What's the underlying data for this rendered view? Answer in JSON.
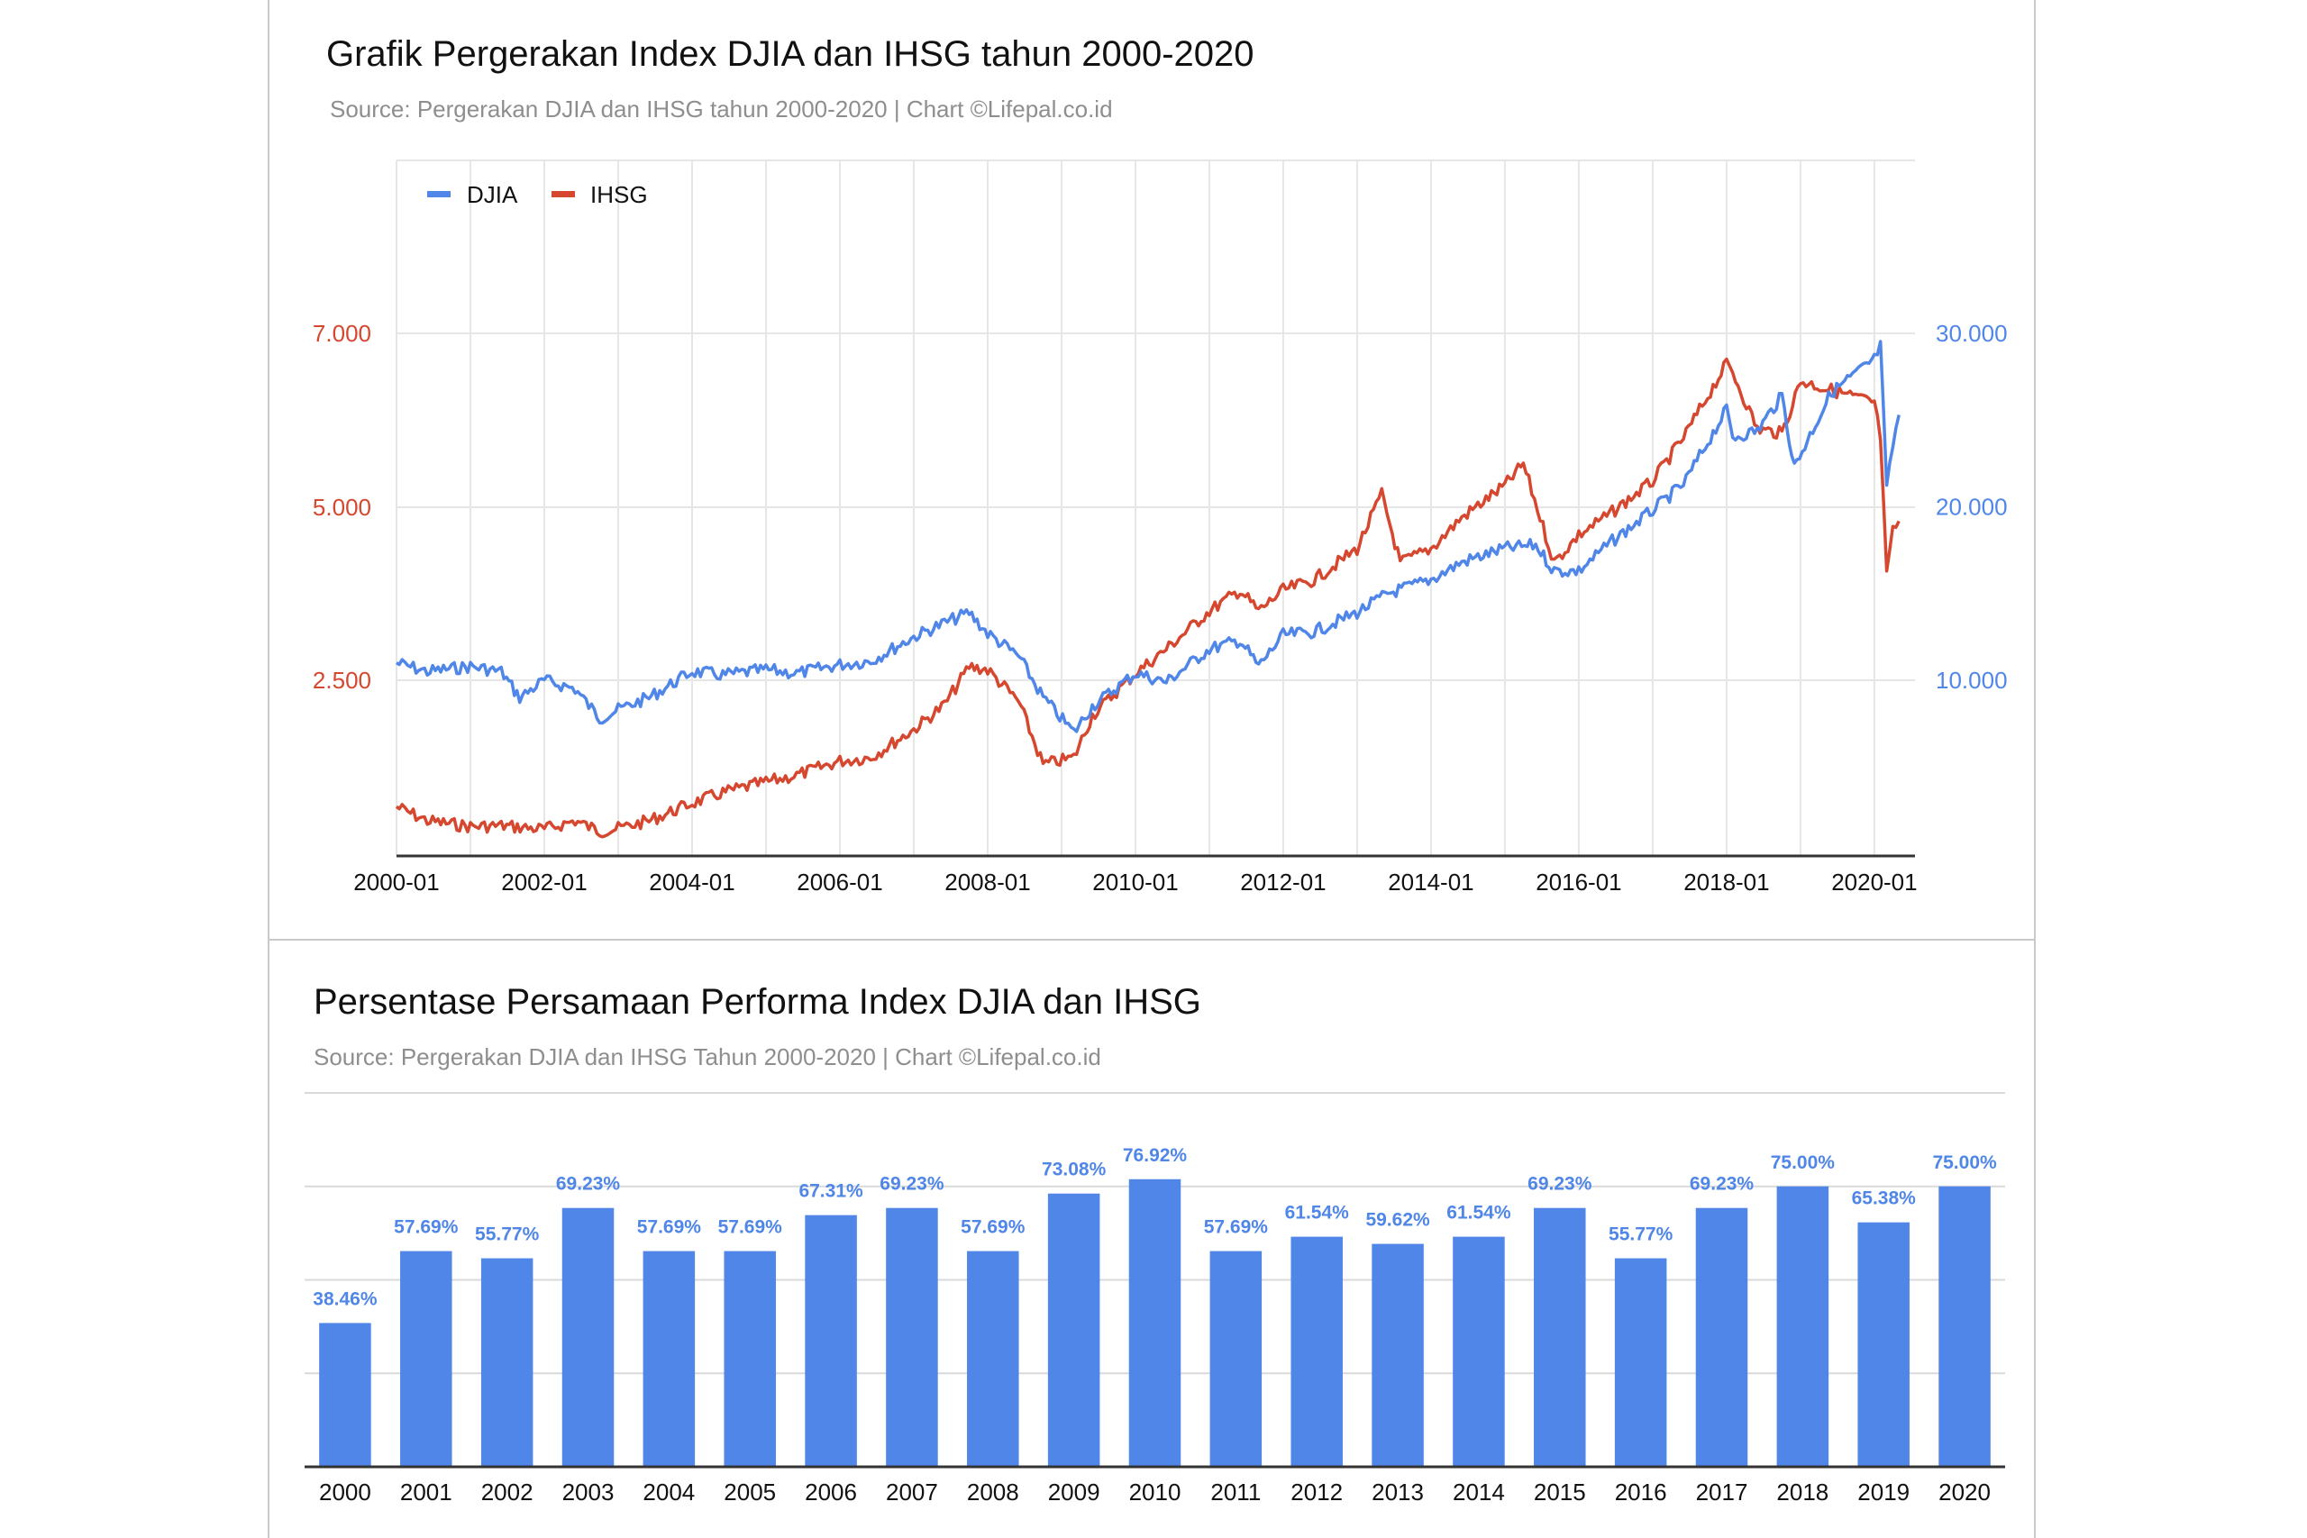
{
  "charts": [
    {
      "title": "Grafik Pergerakan Index DJIA dan IHSG tahun 2000-2020",
      "subtitle": "Source: Pergerakan DJIA dan IHSG tahun 2000-2020 | Chart ©Lifepal.co.id"
    },
    {
      "title": "Persentase Persamaan Performa Index DJIA dan IHSG",
      "subtitle": "Source: Pergerakan DJIA dan IHSG Tahun 2000-2020 | Chart ©Lifepal.co.id"
    }
  ],
  "colors": {
    "djia": "#4f86e8",
    "ihsg": "#d6472f",
    "grid": "#e6e6e6",
    "axis": "#333333"
  },
  "chart_data": [
    {
      "type": "line",
      "title": "Grafik Pergerakan Index DJIA dan IHSG tahun 2000-2020",
      "legend_position": "top-left",
      "grid": true,
      "x_ticks": [
        "2000-01",
        "2002-01",
        "2004-01",
        "2006-01",
        "2008-01",
        "2010-01",
        "2012-01",
        "2014-01",
        "2016-01",
        "2018-01",
        "2020-01"
      ],
      "y_left_ticks": [
        "2.500",
        "5.000",
        "7.000"
      ],
      "y_left_values": [
        2500,
        5000,
        7000
      ],
      "y_right_ticks": [
        "10.000",
        "20.000",
        "30.000"
      ],
      "y_right_values": [
        10000,
        20000,
        30000
      ],
      "series": [
        {
          "name": "DJIA",
          "axis": "right",
          "x": [
            "2000-01",
            "2000-06",
            "2001-01",
            "2001-06",
            "2001-09",
            "2002-01",
            "2002-06",
            "2002-10",
            "2003-01",
            "2003-06",
            "2004-01",
            "2004-06",
            "2005-01",
            "2005-06",
            "2006-01",
            "2006-06",
            "2007-01",
            "2007-06",
            "2007-10",
            "2008-01",
            "2008-06",
            "2008-10",
            "2009-03",
            "2009-06",
            "2010-01",
            "2010-06",
            "2011-01",
            "2011-06",
            "2011-09",
            "2012-01",
            "2012-06",
            "2013-01",
            "2013-06",
            "2014-01",
            "2014-06",
            "2015-01",
            "2015-06",
            "2015-09",
            "2016-01",
            "2016-06",
            "2017-01",
            "2017-06",
            "2018-01",
            "2018-02",
            "2018-06",
            "2018-10",
            "2018-12",
            "2019-06",
            "2020-01",
            "2020-02",
            "2020-03",
            "2020-04",
            "2020-05"
          ],
          "y": [
            11000,
            10500,
            10800,
            10500,
            9000,
            10000,
            9500,
            7800,
            8300,
            9000,
            10500,
            10300,
            10600,
            10400,
            10900,
            11100,
            12500,
            13300,
            13900,
            12700,
            11400,
            9000,
            7000,
            8500,
            10400,
            9900,
            11800,
            12300,
            10800,
            12600,
            12800,
            13900,
            15000,
            15800,
            16800,
            17600,
            17800,
            16300,
            16300,
            17900,
            19800,
            21300,
            25600,
            24000,
            24400,
            26400,
            22300,
            26600,
            28500,
            29300,
            21000,
            23500,
            25300
          ]
        },
        {
          "name": "IHSG",
          "axis": "left",
          "x": [
            "2000-01",
            "2000-06",
            "2001-01",
            "2001-06",
            "2002-01",
            "2002-06",
            "2002-10",
            "2003-01",
            "2003-06",
            "2004-01",
            "2004-06",
            "2005-01",
            "2005-06",
            "2006-01",
            "2006-06",
            "2007-01",
            "2007-06",
            "2007-10",
            "2008-01",
            "2008-06",
            "2008-10",
            "2009-03",
            "2009-06",
            "2010-01",
            "2010-06",
            "2011-01",
            "2011-06",
            "2011-09",
            "2012-01",
            "2012-06",
            "2013-01",
            "2013-05",
            "2013-08",
            "2014-01",
            "2014-06",
            "2015-01",
            "2015-04",
            "2015-09",
            "2016-01",
            "2016-06",
            "2017-01",
            "2017-06",
            "2018-01",
            "2018-02",
            "2018-06",
            "2018-10",
            "2019-01",
            "2019-06",
            "2020-01",
            "2020-02",
            "2020-03",
            "2020-04",
            "2020-05"
          ],
          "y": [
            700,
            500,
            420,
            430,
            380,
            500,
            350,
            390,
            500,
            750,
            900,
            1050,
            1150,
            1350,
            1400,
            1800,
            2150,
            2700,
            2650,
            2200,
            1300,
            1400,
            2000,
            2600,
            2950,
            3500,
            3800,
            3500,
            3800,
            3950,
            4400,
            5150,
            4200,
            4400,
            4850,
            5250,
            5500,
            4200,
            4600,
            4900,
            5300,
            5800,
            6650,
            6550,
            5900,
            5850,
            6450,
            6350,
            6200,
            5800,
            4000,
            4650,
            4800
          ]
        }
      ]
    },
    {
      "type": "bar",
      "title": "Persentase Persamaan Performa Index DJIA dan IHSG",
      "grid": true,
      "ylim": [
        0,
        100
      ],
      "categories": [
        "2000",
        "2001",
        "2002",
        "2003",
        "2004",
        "2005",
        "2006",
        "2007",
        "2008",
        "2009",
        "2010",
        "2011",
        "2012",
        "2013",
        "2014",
        "2015",
        "2016",
        "2017",
        "2018",
        "2019",
        "2020"
      ],
      "values": [
        38.46,
        57.69,
        55.77,
        69.23,
        57.69,
        57.69,
        67.31,
        69.23,
        57.69,
        73.08,
        76.92,
        57.69,
        61.54,
        59.62,
        61.54,
        69.23,
        55.77,
        69.23,
        75.0,
        65.38,
        75.0
      ],
      "labels": [
        "38.46%",
        "57.69%",
        "55.77%",
        "69.23%",
        "57.69%",
        "57.69%",
        "67.31%",
        "69.23%",
        "57.69%",
        "73.08%",
        "76.92%",
        "57.69%",
        "61.54%",
        "59.62%",
        "61.54%",
        "69.23%",
        "55.77%",
        "69.23%",
        "75.00%",
        "65.38%",
        "75.00%"
      ]
    }
  ]
}
